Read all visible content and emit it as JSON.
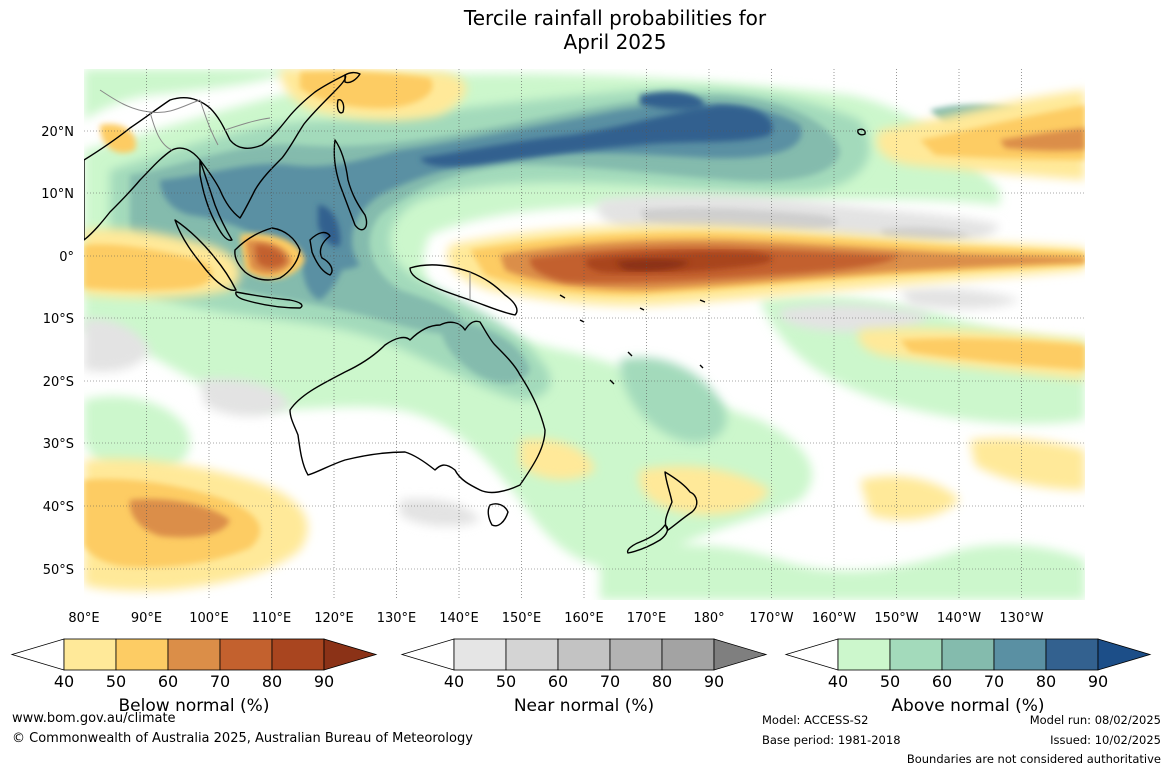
{
  "title": {
    "line1": "Tercile rainfall probabilities for",
    "line2": "April 2025"
  },
  "map": {
    "lat_labels": [
      "20°N",
      "10°N",
      "0°",
      "10°S",
      "20°S",
      "30°S",
      "40°S",
      "50°S"
    ],
    "lon_labels": [
      "80°E",
      "90°E",
      "100°E",
      "110°E",
      "120°E",
      "130°E",
      "140°E",
      "150°E",
      "160°E",
      "170°E",
      "180°",
      "170°W",
      "160°W",
      "150°W",
      "140°W",
      "130°W"
    ],
    "colors": {
      "ocean_white": "#ffffff",
      "near_light": "#e3e3e3",
      "near_mid": "#cfcfcf",
      "above": [
        "#ccf7cc",
        "#a3dabb",
        "#84bbad",
        "#5a90a3",
        "#33618f",
        "#1c4e88"
      ],
      "below": [
        "#ffe999",
        "#fdcc64",
        "#db8e48",
        "#c3612e",
        "#a9451f",
        "#8b3217"
      ],
      "near": [
        "#e5e5e5",
        "#d4d4d4",
        "#c3c3c3",
        "#b3b3b3",
        "#a3a3a3",
        "#7f7f7f"
      ],
      "coast": "#000000",
      "border": "#888888",
      "grid": "#555555"
    }
  },
  "colorbars": [
    {
      "label": "Below normal (%)",
      "ticks": [
        "40",
        "50",
        "60",
        "70",
        "80",
        "90"
      ],
      "palette": "below"
    },
    {
      "label": "Near normal (%)",
      "ticks": [
        "40",
        "50",
        "60",
        "70",
        "80",
        "90"
      ],
      "palette": "near"
    },
    {
      "label": "Above normal (%)",
      "ticks": [
        "40",
        "50",
        "60",
        "70",
        "80",
        "90"
      ],
      "palette": "above"
    }
  ],
  "footer": {
    "website": "www.bom.gov.au/climate",
    "copyright": "© Commonwealth of Australia 2025, Australian Bureau of Meteorology",
    "model": "Model: ACCESS-S2",
    "base_period": "Base period: 1981-2018",
    "model_run": "Model run: 08/02/2025",
    "issued": "Issued: 10/02/2025",
    "disclaimer": "Boundaries are not considered authoritative"
  }
}
